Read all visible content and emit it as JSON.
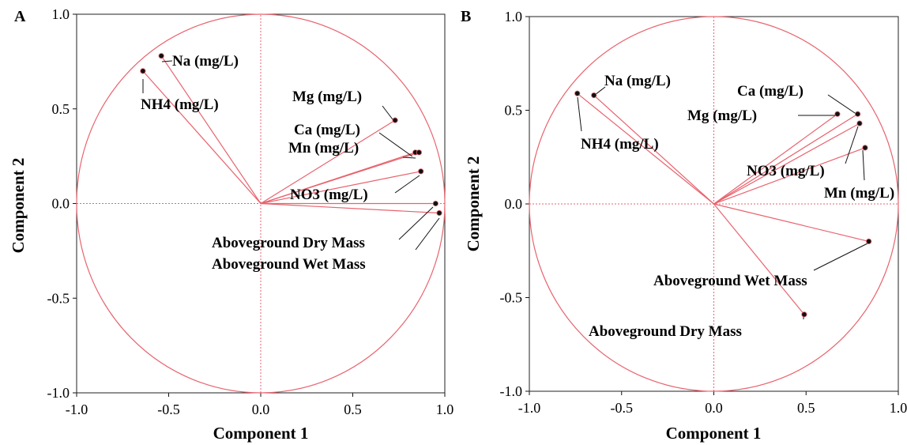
{
  "chart_data": [
    {
      "type": "scatter",
      "panel": "A",
      "xlabel": "Component 1",
      "ylabel": "Component 2",
      "xlim": [
        -1.0,
        1.0
      ],
      "ylim": [
        -1.0,
        1.0
      ],
      "xticks": [
        "-1.0",
        "-0.5",
        "0.0",
        "0.5",
        "1.0"
      ],
      "yticks": [
        "1.0",
        "0.5",
        "0.0",
        "-0.5",
        "-1.0"
      ],
      "points": [
        {
          "label": "Na (mg/L)",
          "x": -0.54,
          "y": 0.78
        },
        {
          "label": "NH4 (mg/L)",
          "x": -0.64,
          "y": 0.7
        },
        {
          "label": "Mg (mg/L)",
          "x": 0.73,
          "y": 0.44
        },
        {
          "label": "Ca (mg/L)",
          "x": 0.84,
          "y": 0.27
        },
        {
          "label": "Mn (mg/L)",
          "x": 0.86,
          "y": 0.27
        },
        {
          "label": "NO3 (mg/L)",
          "x": 0.87,
          "y": 0.17
        },
        {
          "label": "Aboveground Dry Mass",
          "x": 0.95,
          "y": 0.0
        },
        {
          "label": "Aboveground Wet Mass",
          "x": 0.97,
          "y": -0.05
        }
      ]
    },
    {
      "type": "scatter",
      "panel": "B",
      "xlabel": "Component 1",
      "ylabel": "Component 2",
      "xlim": [
        -1.0,
        1.0
      ],
      "ylim": [
        -1.0,
        1.0
      ],
      "xticks": [
        "-1.0",
        "-0.5",
        "0.0",
        "0.5",
        "1.0"
      ],
      "yticks": [
        "1.0",
        "0.5",
        "0.0",
        "-0.5",
        "-1.0"
      ],
      "points": [
        {
          "label": "Na (mg/L)",
          "x": -0.65,
          "y": 0.58
        },
        {
          "label": "NH4 (mg/L)",
          "x": -0.74,
          "y": 0.59
        },
        {
          "label": "Ca (mg/L)",
          "x": 0.78,
          "y": 0.48
        },
        {
          "label": "Mg (mg/L)",
          "x": 0.67,
          "y": 0.48
        },
        {
          "label": "NO3 (mg/L)",
          "x": 0.79,
          "y": 0.43
        },
        {
          "label": "Mn (mg/L)",
          "x": 0.82,
          "y": 0.3
        },
        {
          "label": "Aboveground Wet Mass",
          "x": 0.84,
          "y": -0.2
        },
        {
          "label": "Aboveground Dry Mass",
          "x": 0.49,
          "y": -0.59
        }
      ]
    }
  ]
}
